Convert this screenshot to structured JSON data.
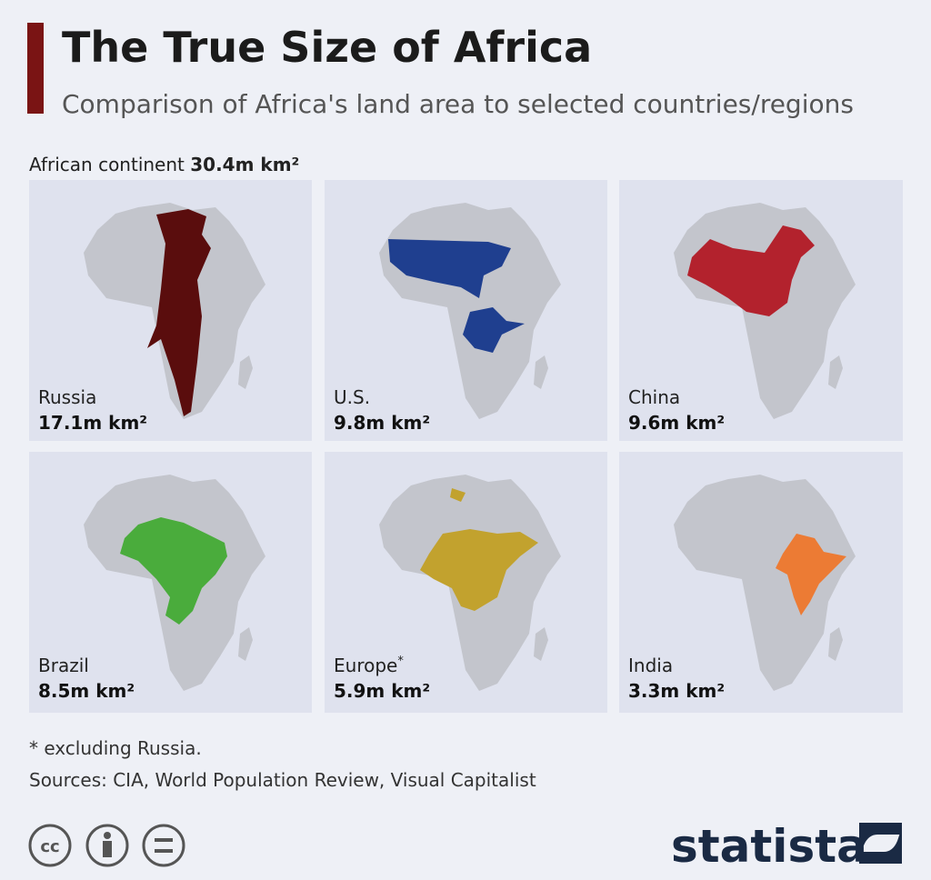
{
  "header": {
    "title": "The True Size of Africa",
    "subtitle": "Comparison of Africa's land area to selected countries/regions"
  },
  "continent": {
    "label": "African continent",
    "value": "30.4m km²"
  },
  "panels": [
    {
      "name": "Russia",
      "area": "17.1m km²"
    },
    {
      "name": "U.S.",
      "area": "9.8m km²"
    },
    {
      "name": "China",
      "area": "9.6m km²"
    },
    {
      "name": "Brazil",
      "area": "8.5m km²"
    },
    {
      "name": "Europe",
      "marker": "*",
      "area": "5.9m km²"
    },
    {
      "name": "India",
      "area": "3.3m km²"
    }
  ],
  "footer": {
    "note": "* excluding Russia.",
    "sources": "Sources: CIA, World Population Review, Visual Capitalist",
    "license": "cc",
    "brand": "statista"
  }
}
